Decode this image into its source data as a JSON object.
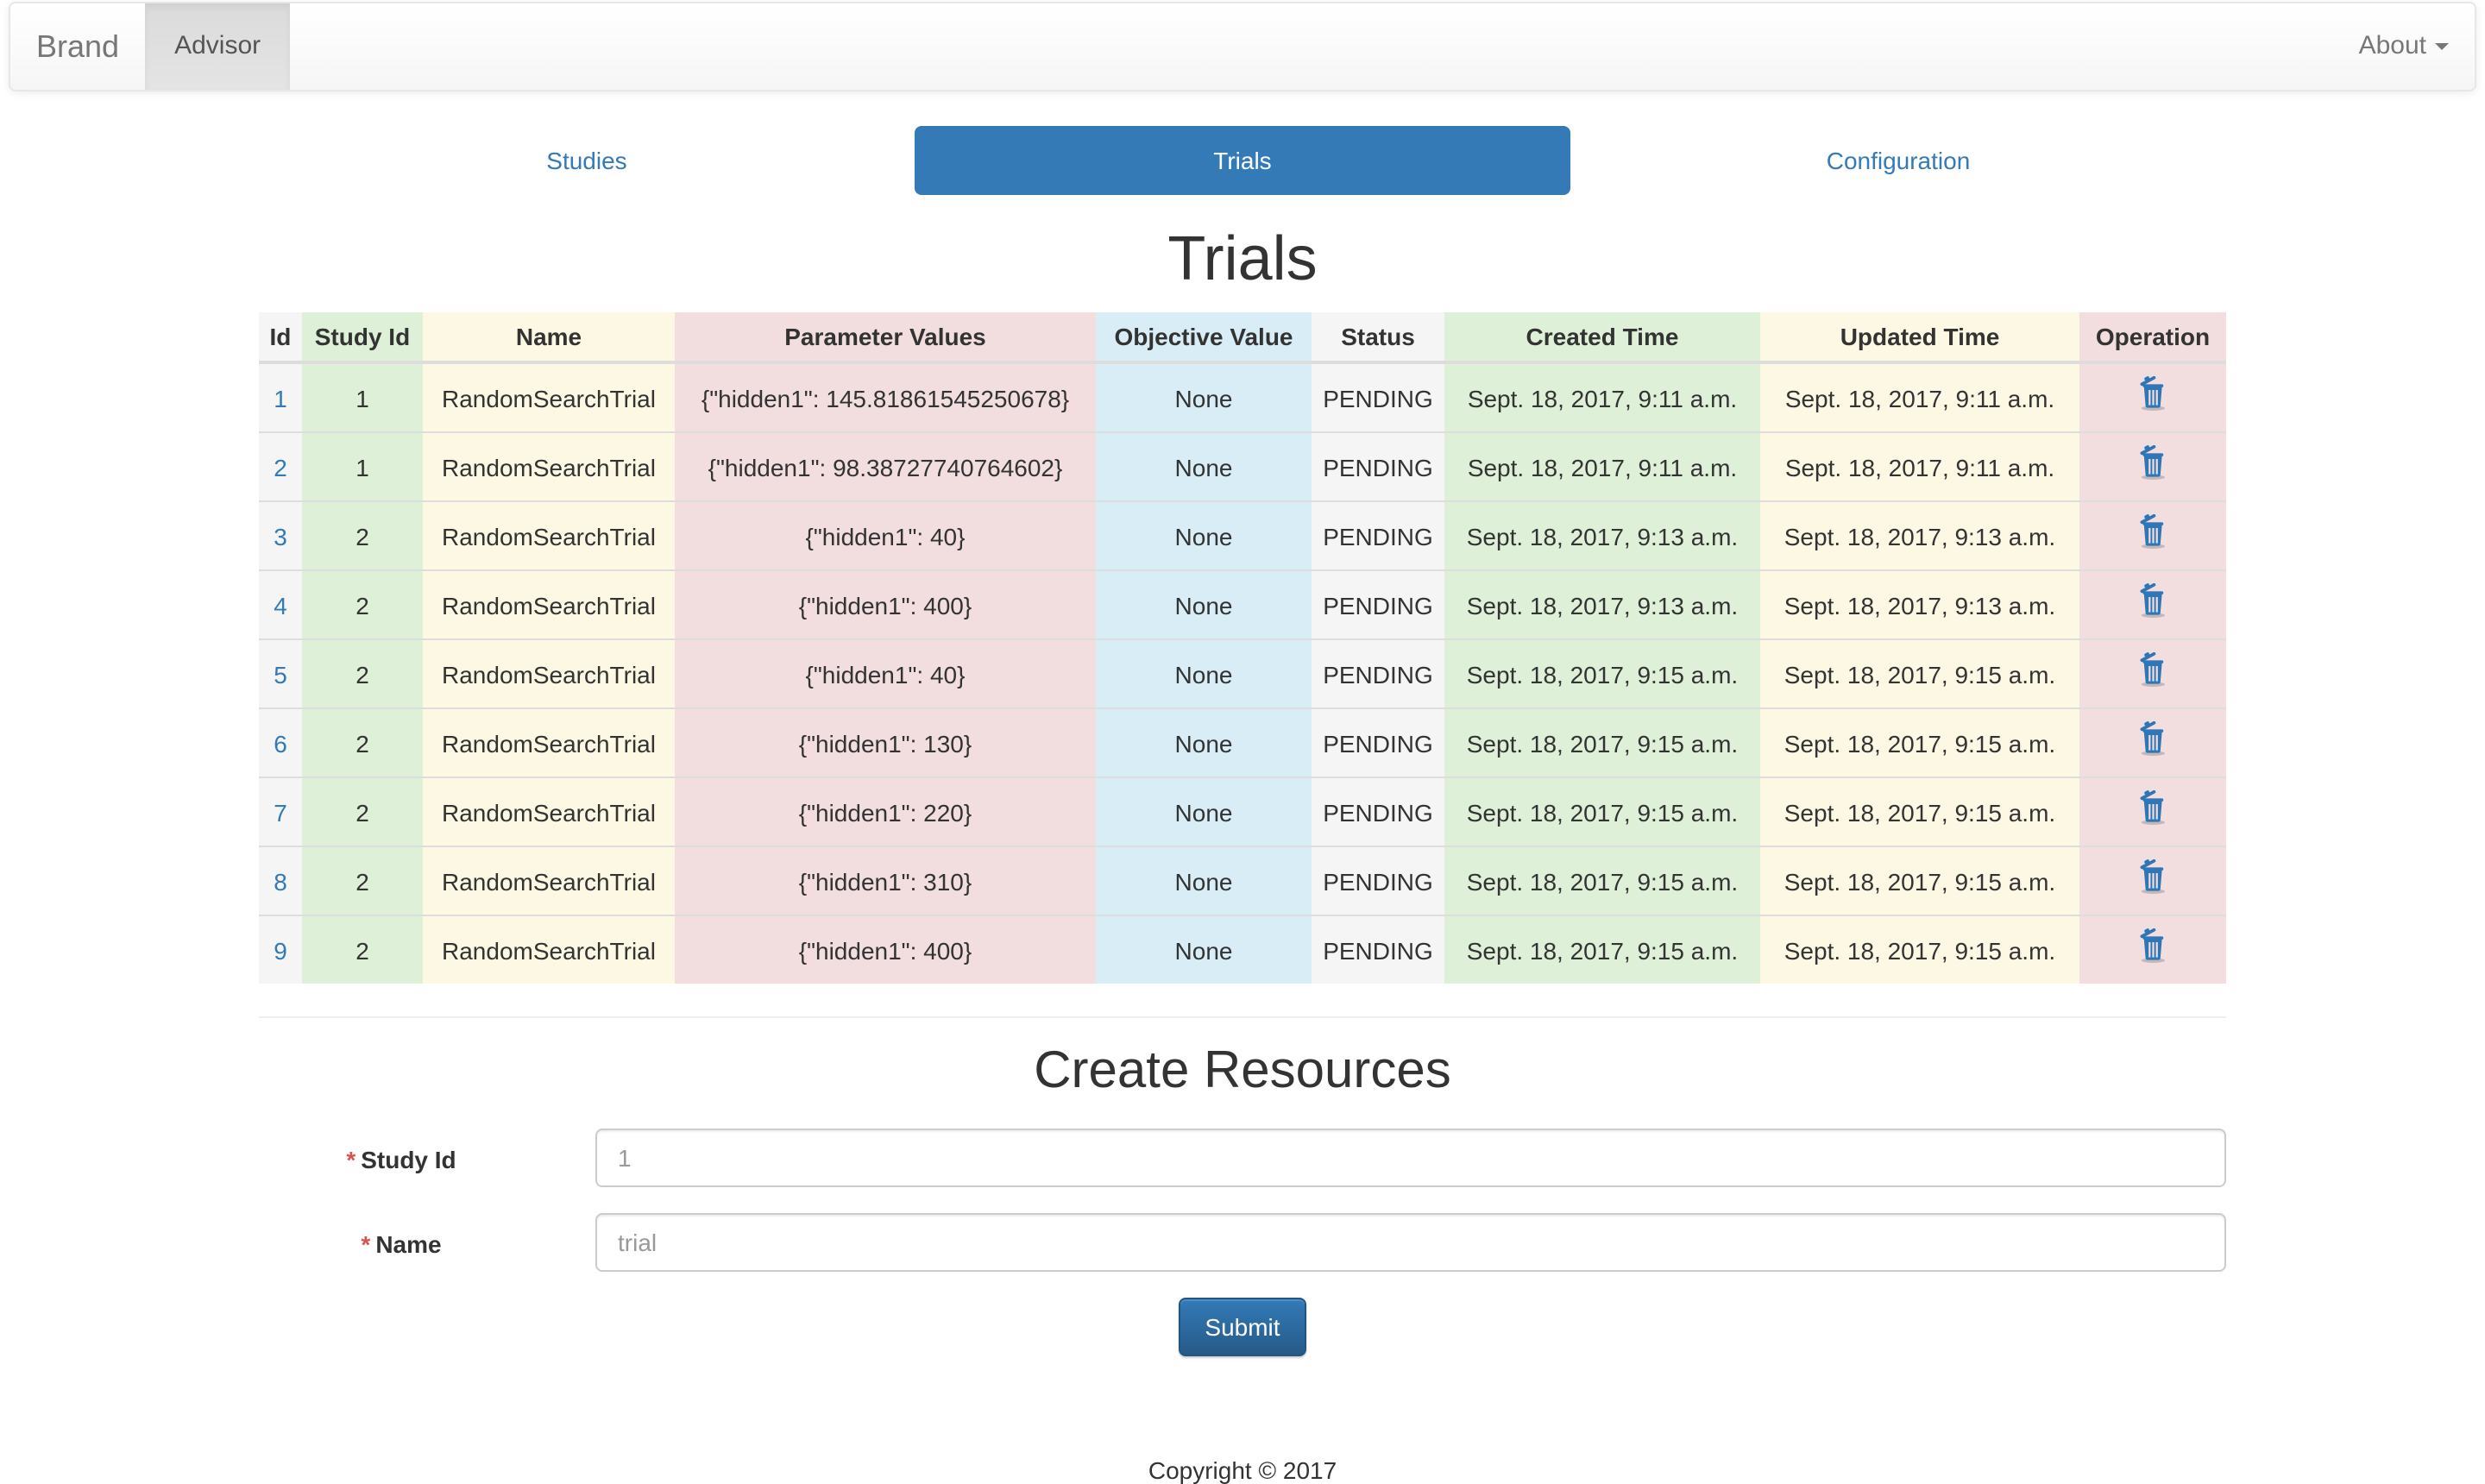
{
  "navbar": {
    "brand": "Brand",
    "items": [
      {
        "label": "Advisor",
        "active": true
      }
    ],
    "about": {
      "label": "About"
    }
  },
  "tabs": [
    {
      "label": "Studies",
      "active": false
    },
    {
      "label": "Trials",
      "active": true
    },
    {
      "label": "Configuration",
      "active": false
    }
  ],
  "page_title": "Trials",
  "table": {
    "columns": [
      {
        "label": "Id",
        "tint": "active"
      },
      {
        "label": "Study Id",
        "tint": "success"
      },
      {
        "label": "Name",
        "tint": "warning"
      },
      {
        "label": "Parameter Values",
        "tint": "danger"
      },
      {
        "label": "Objective Value",
        "tint": "info"
      },
      {
        "label": "Status",
        "tint": "active"
      },
      {
        "label": "Created Time",
        "tint": "success"
      },
      {
        "label": "Updated Time",
        "tint": "warning"
      },
      {
        "label": "Operation",
        "tint": "danger"
      }
    ],
    "operation_icon": "trash-icon",
    "rows": [
      {
        "id": "1",
        "study_id": "1",
        "name": "RandomSearchTrial",
        "parameter_values": "{\"hidden1\": 145.81861545250678}",
        "objective_value": "None",
        "status": "PENDING",
        "created_time": "Sept. 18, 2017, 9:11 a.m.",
        "updated_time": "Sept. 18, 2017, 9:11 a.m."
      },
      {
        "id": "2",
        "study_id": "1",
        "name": "RandomSearchTrial",
        "parameter_values": "{\"hidden1\": 98.38727740764602}",
        "objective_value": "None",
        "status": "PENDING",
        "created_time": "Sept. 18, 2017, 9:11 a.m.",
        "updated_time": "Sept. 18, 2017, 9:11 a.m."
      },
      {
        "id": "3",
        "study_id": "2",
        "name": "RandomSearchTrial",
        "parameter_values": "{\"hidden1\": 40}",
        "objective_value": "None",
        "status": "PENDING",
        "created_time": "Sept. 18, 2017, 9:13 a.m.",
        "updated_time": "Sept. 18, 2017, 9:13 a.m."
      },
      {
        "id": "4",
        "study_id": "2",
        "name": "RandomSearchTrial",
        "parameter_values": "{\"hidden1\": 400}",
        "objective_value": "None",
        "status": "PENDING",
        "created_time": "Sept. 18, 2017, 9:13 a.m.",
        "updated_time": "Sept. 18, 2017, 9:13 a.m."
      },
      {
        "id": "5",
        "study_id": "2",
        "name": "RandomSearchTrial",
        "parameter_values": "{\"hidden1\": 40}",
        "objective_value": "None",
        "status": "PENDING",
        "created_time": "Sept. 18, 2017, 9:15 a.m.",
        "updated_time": "Sept. 18, 2017, 9:15 a.m."
      },
      {
        "id": "6",
        "study_id": "2",
        "name": "RandomSearchTrial",
        "parameter_values": "{\"hidden1\": 130}",
        "objective_value": "None",
        "status": "PENDING",
        "created_time": "Sept. 18, 2017, 9:15 a.m.",
        "updated_time": "Sept. 18, 2017, 9:15 a.m."
      },
      {
        "id": "7",
        "study_id": "2",
        "name": "RandomSearchTrial",
        "parameter_values": "{\"hidden1\": 220}",
        "objective_value": "None",
        "status": "PENDING",
        "created_time": "Sept. 18, 2017, 9:15 a.m.",
        "updated_time": "Sept. 18, 2017, 9:15 a.m."
      },
      {
        "id": "8",
        "study_id": "2",
        "name": "RandomSearchTrial",
        "parameter_values": "{\"hidden1\": 310}",
        "objective_value": "None",
        "status": "PENDING",
        "created_time": "Sept. 18, 2017, 9:15 a.m.",
        "updated_time": "Sept. 18, 2017, 9:15 a.m."
      },
      {
        "id": "9",
        "study_id": "2",
        "name": "RandomSearchTrial",
        "parameter_values": "{\"hidden1\": 400}",
        "objective_value": "None",
        "status": "PENDING",
        "created_time": "Sept. 18, 2017, 9:15 a.m.",
        "updated_time": "Sept. 18, 2017, 9:15 a.m."
      }
    ]
  },
  "form": {
    "title": "Create Resources",
    "fields": [
      {
        "label": "Study Id",
        "required_marker": "*",
        "placeholder": "1"
      },
      {
        "label": "Name",
        "required_marker": "*",
        "placeholder": "trial"
      }
    ],
    "submit_label": "Submit"
  },
  "footer": {
    "copyright": "Copyright © 2017"
  },
  "colors": {
    "accent": "#337ab7",
    "link": "#337ab7",
    "success_bg": "#dff0d8",
    "warning_bg": "#fcf8e3",
    "danger_bg": "#f2dede",
    "info_bg": "#d9edf7",
    "active_bg": "#f5f5f5"
  }
}
